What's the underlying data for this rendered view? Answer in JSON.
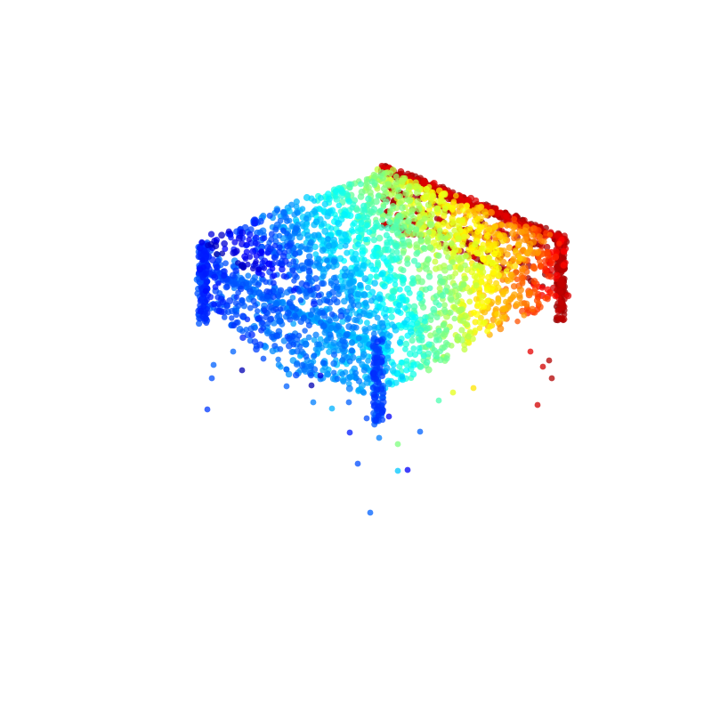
{
  "scene": {
    "kind": "3d-point-cloud",
    "object": "bed",
    "colormap": "jet",
    "color_axis": "depth",
    "background": "#ffffff",
    "point_opacity": 0.75,
    "colormap_stops": [
      "#00007f",
      "#0000ff",
      "#007fff",
      "#00ffff",
      "#7fff7f",
      "#ffff00",
      "#ff7f00",
      "#ff0000",
      "#7f0000"
    ],
    "axes_visible": false,
    "grid_visible": false
  }
}
